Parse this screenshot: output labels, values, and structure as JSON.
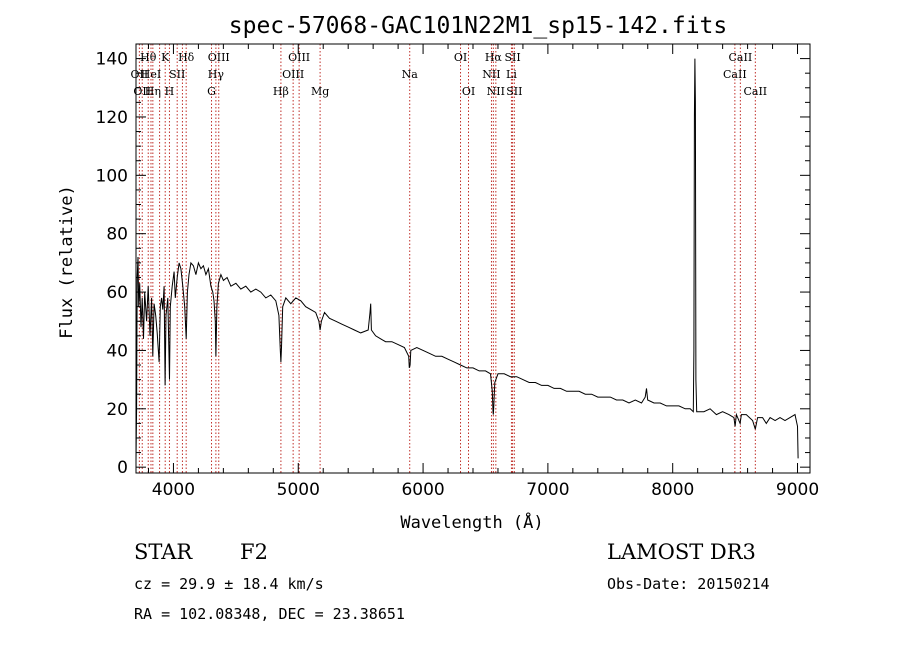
{
  "chart_data": {
    "type": "line",
    "title": "spec-57068-GAC101N22M1_sp15-142.fits",
    "xlabel": "Wavelength (Å)",
    "ylabel": "Flux (relative)",
    "xlim": [
      3700,
      9100
    ],
    "ylim": [
      -2,
      145
    ],
    "xticks": [
      4000,
      5000,
      6000,
      7000,
      8000,
      9000
    ],
    "yticks": [
      0,
      20,
      40,
      60,
      80,
      100,
      120,
      140
    ],
    "grid": false,
    "series": [
      {
        "name": "flux",
        "points": [
          [
            3700,
            2
          ],
          [
            3705,
            20
          ],
          [
            3710,
            65
          ],
          [
            3716,
            72
          ],
          [
            3722,
            55
          ],
          [
            3730,
            63
          ],
          [
            3740,
            48
          ],
          [
            3750,
            58
          ],
          [
            3760,
            44
          ],
          [
            3770,
            60
          ],
          [
            3785,
            50
          ],
          [
            3798,
            62
          ],
          [
            3812,
            45
          ],
          [
            3825,
            58
          ],
          [
            3835,
            38
          ],
          [
            3845,
            56
          ],
          [
            3858,
            52
          ],
          [
            3870,
            46
          ],
          [
            3885,
            36
          ],
          [
            3895,
            55
          ],
          [
            3905,
            58
          ],
          [
            3915,
            54
          ],
          [
            3925,
            62
          ],
          [
            3933,
            28
          ],
          [
            3940,
            52
          ],
          [
            3955,
            58
          ],
          [
            3968,
            30
          ],
          [
            3975,
            55
          ],
          [
            3990,
            62
          ],
          [
            4005,
            67
          ],
          [
            4015,
            58
          ],
          [
            4030,
            65
          ],
          [
            4045,
            70
          ],
          [
            4060,
            68
          ],
          [
            4075,
            62
          ],
          [
            4090,
            55
          ],
          [
            4102,
            44
          ],
          [
            4112,
            60
          ],
          [
            4125,
            66
          ],
          [
            4140,
            70
          ],
          [
            4160,
            69
          ],
          [
            4180,
            66
          ],
          [
            4200,
            70
          ],
          [
            4220,
            68
          ],
          [
            4240,
            69
          ],
          [
            4260,
            66
          ],
          [
            4280,
            68
          ],
          [
            4300,
            62
          ],
          [
            4315,
            60
          ],
          [
            4325,
            57
          ],
          [
            4335,
            50
          ],
          [
            4340,
            38
          ],
          [
            4348,
            55
          ],
          [
            4360,
            63
          ],
          [
            4380,
            66
          ],
          [
            4400,
            64
          ],
          [
            4430,
            65
          ],
          [
            4460,
            62
          ],
          [
            4500,
            63
          ],
          [
            4540,
            61
          ],
          [
            4580,
            62
          ],
          [
            4620,
            60
          ],
          [
            4660,
            61
          ],
          [
            4700,
            60
          ],
          [
            4740,
            58
          ],
          [
            4780,
            59
          ],
          [
            4820,
            57
          ],
          [
            4845,
            52
          ],
          [
            4856,
            40
          ],
          [
            4861,
            36
          ],
          [
            4866,
            41
          ],
          [
            4875,
            55
          ],
          [
            4900,
            58
          ],
          [
            4940,
            56
          ],
          [
            4980,
            58
          ],
          [
            5020,
            57
          ],
          [
            5060,
            55
          ],
          [
            5100,
            54
          ],
          [
            5140,
            53
          ],
          [
            5165,
            50
          ],
          [
            5175,
            47
          ],
          [
            5185,
            50
          ],
          [
            5210,
            53
          ],
          [
            5250,
            51
          ],
          [
            5300,
            50
          ],
          [
            5350,
            49
          ],
          [
            5400,
            48
          ],
          [
            5450,
            47
          ],
          [
            5500,
            46
          ],
          [
            5560,
            47
          ],
          [
            5575,
            53
          ],
          [
            5580,
            56
          ],
          [
            5586,
            47
          ],
          [
            5620,
            45
          ],
          [
            5660,
            44
          ],
          [
            5700,
            43
          ],
          [
            5750,
            43
          ],
          [
            5800,
            42
          ],
          [
            5850,
            41
          ],
          [
            5885,
            38
          ],
          [
            5890,
            34
          ],
          [
            5896,
            35
          ],
          [
            5902,
            40
          ],
          [
            5950,
            41
          ],
          [
            6000,
            40
          ],
          [
            6050,
            39
          ],
          [
            6100,
            38
          ],
          [
            6150,
            38
          ],
          [
            6200,
            37
          ],
          [
            6250,
            36
          ],
          [
            6300,
            35
          ],
          [
            6350,
            34
          ],
          [
            6400,
            34
          ],
          [
            6450,
            33
          ],
          [
            6500,
            33
          ],
          [
            6540,
            32
          ],
          [
            6555,
            26
          ],
          [
            6560,
            19
          ],
          [
            6563,
            18
          ],
          [
            6567,
            21
          ],
          [
            6575,
            29
          ],
          [
            6600,
            32
          ],
          [
            6650,
            32
          ],
          [
            6700,
            31
          ],
          [
            6750,
            31
          ],
          [
            6800,
            30
          ],
          [
            6850,
            29
          ],
          [
            6900,
            29
          ],
          [
            6950,
            28
          ],
          [
            7000,
            28
          ],
          [
            7050,
            27
          ],
          [
            7100,
            27
          ],
          [
            7150,
            26
          ],
          [
            7200,
            26
          ],
          [
            7250,
            26
          ],
          [
            7300,
            25
          ],
          [
            7350,
            25
          ],
          [
            7400,
            24
          ],
          [
            7450,
            24
          ],
          [
            7500,
            24
          ],
          [
            7550,
            23
          ],
          [
            7600,
            23
          ],
          [
            7650,
            22
          ],
          [
            7700,
            23
          ],
          [
            7750,
            22
          ],
          [
            7780,
            24
          ],
          [
            7790,
            27
          ],
          [
            7800,
            23
          ],
          [
            7850,
            22
          ],
          [
            7900,
            22
          ],
          [
            7950,
            21
          ],
          [
            8000,
            21
          ],
          [
            8050,
            21
          ],
          [
            8100,
            20
          ],
          [
            8140,
            20
          ],
          [
            8165,
            19
          ],
          [
            8170,
            40
          ],
          [
            8174,
            120
          ],
          [
            8178,
            140
          ],
          [
            8182,
            125
          ],
          [
            8186,
            30
          ],
          [
            8192,
            19
          ],
          [
            8250,
            19
          ],
          [
            8300,
            20
          ],
          [
            8350,
            18
          ],
          [
            8400,
            19
          ],
          [
            8450,
            18
          ],
          [
            8490,
            17
          ],
          [
            8500,
            14
          ],
          [
            8510,
            18
          ],
          [
            8540,
            15
          ],
          [
            8550,
            18
          ],
          [
            8590,
            18
          ],
          [
            8640,
            16
          ],
          [
            8662,
            13
          ],
          [
            8680,
            17
          ],
          [
            8720,
            17
          ],
          [
            8750,
            15
          ],
          [
            8780,
            17
          ],
          [
            8820,
            16
          ],
          [
            8860,
            17
          ],
          [
            8900,
            16
          ],
          [
            8940,
            17
          ],
          [
            8980,
            18
          ],
          [
            9000,
            14
          ],
          [
            9005,
            3
          ]
        ]
      }
    ],
    "line_markers": [
      {
        "wavelength": 3727,
        "label": "OII",
        "row": 2
      },
      {
        "wavelength": 3750,
        "label": "OII",
        "row": 3
      },
      {
        "wavelength": 3798,
        "label": "Hθ",
        "row": 1
      },
      {
        "wavelength": 3820,
        "label": "HeI",
        "row": 2
      },
      {
        "wavelength": 3835,
        "label": "Hη",
        "row": 3
      },
      {
        "wavelength": 3889,
        "label": "",
        "row": 0
      },
      {
        "wavelength": 3934,
        "label": "K",
        "row": 1
      },
      {
        "wavelength": 3968,
        "label": "H",
        "row": 3
      },
      {
        "wavelength": 4030,
        "label": "SII",
        "row": 2
      },
      {
        "wavelength": 4072,
        "label": "",
        "row": 0
      },
      {
        "wavelength": 4102,
        "label": "Hδ",
        "row": 1
      },
      {
        "wavelength": 4305,
        "label": "G",
        "row": 3
      },
      {
        "wavelength": 4340,
        "label": "Hγ",
        "row": 2
      },
      {
        "wavelength": 4363,
        "label": "OIII",
        "row": 1
      },
      {
        "wavelength": 4861,
        "label": "Hβ",
        "row": 3
      },
      {
        "wavelength": 4959,
        "label": "OIII",
        "row": 2
      },
      {
        "wavelength": 5007,
        "label": "OIII",
        "row": 1
      },
      {
        "wavelength": 5175,
        "label": "Mg",
        "row": 3
      },
      {
        "wavelength": 5893,
        "label": "Na",
        "row": 2
      },
      {
        "wavelength": 6300,
        "label": "OI",
        "row": 1
      },
      {
        "wavelength": 6364,
        "label": "OI",
        "row": 3
      },
      {
        "wavelength": 6548,
        "label": "NII",
        "row": 2
      },
      {
        "wavelength": 6563,
        "label": "Hα",
        "row": 1
      },
      {
        "wavelength": 6583,
        "label": "NII",
        "row": 3
      },
      {
        "wavelength": 6708,
        "label": "Li",
        "row": 2
      },
      {
        "wavelength": 6717,
        "label": "SII",
        "row": 1
      },
      {
        "wavelength": 6731,
        "label": "SII",
        "row": 3
      },
      {
        "wavelength": 8498,
        "label": "CaII",
        "row": 2
      },
      {
        "wavelength": 8542,
        "label": "CaII",
        "row": 1
      },
      {
        "wavelength": 8662,
        "label": "CaII",
        "row": 3
      }
    ]
  },
  "info": {
    "object_class": "STAR",
    "subclass": "F2",
    "survey": "LAMOST DR3",
    "redshift": "cz = 29.9 ± 18.4 km/s",
    "obs_date": "Obs-Date: 20150214",
    "coords": "RA = 102.08348, DEC =  23.38651"
  },
  "colors": {
    "axis": "#000000",
    "spectrum": "#000000",
    "line_markers": "#c0302a",
    "background": "#ffffff"
  }
}
